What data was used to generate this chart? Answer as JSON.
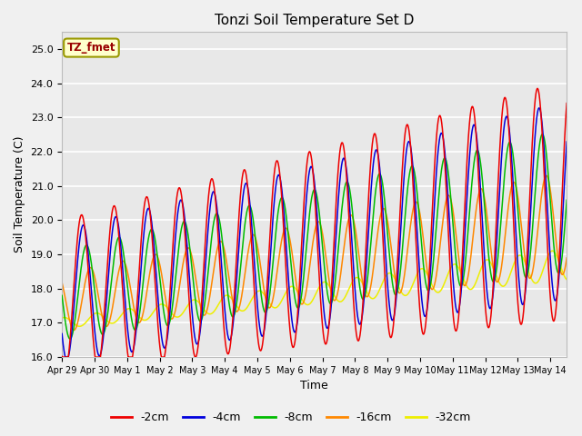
{
  "title": "Tonzi Soil Temperature Set D",
  "xlabel": "Time",
  "ylabel": "Soil Temperature (C)",
  "ylim": [
    16.0,
    25.5
  ],
  "xlim_days": 15.5,
  "series_colors": {
    "-2cm": "#ee0000",
    "-4cm": "#0000dd",
    "-8cm": "#00bb00",
    "-16cm": "#ff8800",
    "-32cm": "#eeee00"
  },
  "legend_label": "TZ_fmet",
  "legend_box_color": "#ffffcc",
  "legend_box_border": "#999900",
  "plot_bg_color": "#e8e8e8",
  "grid_color": "#ffffff",
  "xtick_labels": [
    "Apr 29",
    "Apr 30",
    "May 1",
    "May 2",
    "May 3",
    "May 4",
    "May 5",
    "May 6",
    "May 7",
    "May 8",
    "May 9",
    "May 10",
    "May 11",
    "May 12",
    "May 13",
    "May 14"
  ],
  "ytick_values": [
    16.0,
    17.0,
    18.0,
    19.0,
    20.0,
    21.0,
    22.0,
    23.0,
    24.0,
    25.0
  ]
}
